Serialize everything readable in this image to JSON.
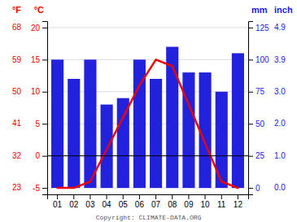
{
  "chart_data": {
    "type": "bar",
    "categories": [
      "01",
      "02",
      "03",
      "04",
      "05",
      "06",
      "07",
      "08",
      "09",
      "10",
      "11",
      "12"
    ],
    "series": [
      {
        "type": "bar",
        "axis": "y2",
        "color": "#2222dd",
        "values": [
          100,
          85,
          100,
          65,
          70,
          100,
          85,
          110,
          90,
          90,
          75,
          105
        ]
      },
      {
        "type": "line",
        "color": "#ee0000",
        "values": [
          -5,
          -5,
          -4,
          1,
          6,
          11,
          15,
          14,
          8,
          2,
          -4,
          -5
        ]
      }
    ],
    "ylabel": "°C",
    "y2label": "mm",
    "ylim": [
      -6,
      21
    ],
    "yticks": [
      -5,
      0,
      5,
      10,
      15,
      20
    ],
    "y2lim": [
      -5,
      130
    ],
    "y2ticks": [
      0,
      25,
      50,
      75,
      100,
      125
    ],
    "grid": true,
    "reference_lines": [
      0
    ],
    "annotations": [
      {
        "text": "°F",
        "axis": "y"
      },
      {
        "text": "23",
        "y": -5,
        "axis": "y"
      },
      {
        "text": "32",
        "y": 0,
        "axis": "y"
      },
      {
        "text": "41",
        "y": 5,
        "axis": "y"
      },
      {
        "text": "50",
        "y": 10,
        "axis": "y"
      },
      {
        "text": "59",
        "y": 15,
        "axis": "y"
      },
      {
        "text": "68",
        "y": 20,
        "axis": "y"
      },
      {
        "text": "inch",
        "axis": "y2"
      },
      {
        "text": "0.0",
        "y": 0,
        "axis": "y2"
      },
      {
        "text": "1.0",
        "y": 25,
        "axis": "y2"
      },
      {
        "text": "2.0",
        "y": 50,
        "axis": "y2"
      },
      {
        "text": "3.0",
        "y": 75,
        "axis": "y2"
      },
      {
        "text": "3.9",
        "y": 100,
        "axis": "y2"
      },
      {
        "text": "4.9",
        "y": 125,
        "axis": "y2"
      },
      {
        "text": "Copyright: CLIMATE-DATA.ORG"
      }
    ]
  }
}
